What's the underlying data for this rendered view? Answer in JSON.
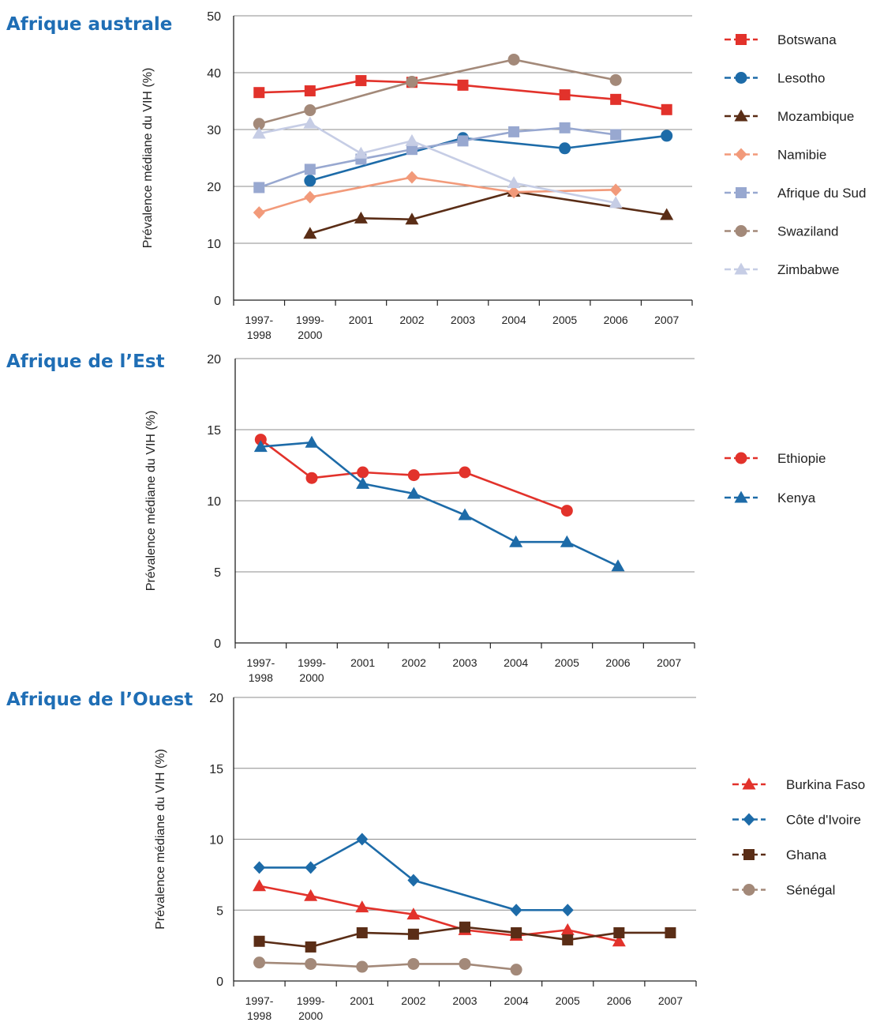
{
  "chart_data": [
    {
      "type": "line",
      "title": "Afrique australe",
      "ylabel": "Prévalence médiane du VIH (%)",
      "ylim": [
        0,
        50
      ],
      "yticks": [
        0,
        10,
        20,
        30,
        40,
        50
      ],
      "categories": [
        "1997-\n1998",
        "1999-\n2000",
        "2001",
        "2002",
        "2003",
        "2004",
        "2005",
        "2006",
        "2007"
      ],
      "grid": true,
      "legend_position": "right",
      "series": [
        {
          "name": "Botswana",
          "color": "#e2322b",
          "marker": "square",
          "values": [
            36.5,
            36.8,
            38.6,
            38.3,
            37.8,
            null,
            36.1,
            35.3,
            33.5
          ]
        },
        {
          "name": "Lesotho",
          "color": "#1d6ba8",
          "marker": "circle",
          "values": [
            null,
            21.0,
            null,
            null,
            28.5,
            null,
            26.7,
            null,
            28.9
          ]
        },
        {
          "name": "Mozambique",
          "color": "#5a2d16",
          "marker": "triangle",
          "values": [
            null,
            11.7,
            14.4,
            14.2,
            null,
            19.1,
            null,
            null,
            15.0
          ]
        },
        {
          "name": "Namibie",
          "color": "#f29a7a",
          "marker": "diamond",
          "values": [
            15.4,
            18.1,
            null,
            21.6,
            null,
            19.0,
            null,
            19.4,
            null
          ]
        },
        {
          "name": "Afrique du Sud",
          "color": "#98a8d0",
          "marker": "square",
          "values": [
            19.8,
            23.0,
            24.8,
            26.5,
            28.0,
            29.6,
            30.3,
            29.1,
            null
          ]
        },
        {
          "name": "Swaziland",
          "color": "#a38979",
          "marker": "circle",
          "values": [
            31.0,
            33.4,
            null,
            38.4,
            null,
            42.3,
            null,
            38.7,
            null
          ]
        },
        {
          "name": "Zimbabwe",
          "color": "#c6cde5",
          "marker": "triangle",
          "values": [
            29.3,
            31.1,
            25.8,
            28.0,
            null,
            20.6,
            null,
            17.1,
            null
          ]
        }
      ]
    },
    {
      "type": "line",
      "title": "Afrique de l’Est",
      "ylabel": "Prévalence médiane du VIH (%)",
      "ylim": [
        0,
        20
      ],
      "yticks": [
        0,
        5,
        10,
        15,
        20
      ],
      "categories": [
        "1997-\n1998",
        "1999-\n2000",
        "2001",
        "2002",
        "2003",
        "2004",
        "2005",
        "2006",
        "2007"
      ],
      "grid": true,
      "legend_position": "right",
      "series": [
        {
          "name": "Ethiopie",
          "color": "#e2322b",
          "marker": "circle",
          "values": [
            14.3,
            11.6,
            12.0,
            11.8,
            12.0,
            null,
            9.3,
            null,
            null
          ]
        },
        {
          "name": "Kenya",
          "color": "#1d6ba8",
          "marker": "triangle",
          "values": [
            13.8,
            14.1,
            11.2,
            10.5,
            9.0,
            7.1,
            7.1,
            5.4,
            null
          ]
        }
      ]
    },
    {
      "type": "line",
      "title": "Afrique de l’Ouest",
      "ylabel": "Prévalence médiane du VIH (%)",
      "ylim": [
        0,
        20
      ],
      "yticks": [
        0,
        5,
        10,
        15,
        20
      ],
      "categories": [
        "1997-\n1998",
        "1999-\n2000",
        "2001",
        "2002",
        "2003",
        "2004",
        "2005",
        "2006",
        "2007"
      ],
      "grid": true,
      "legend_position": "right",
      "series": [
        {
          "name": "Burkina Faso",
          "color": "#e2322b",
          "marker": "triangle",
          "values": [
            6.7,
            6.0,
            5.2,
            4.7,
            3.6,
            3.2,
            3.6,
            2.8,
            null
          ]
        },
        {
          "name": "Côte d'Ivoire",
          "color": "#1d6ba8",
          "marker": "diamond",
          "values": [
            8.0,
            8.0,
            10.0,
            7.1,
            null,
            5.0,
            5.0,
            null,
            null
          ]
        },
        {
          "name": "Ghana",
          "color": "#5a2d16",
          "marker": "square",
          "values": [
            2.8,
            2.4,
            3.4,
            3.3,
            3.8,
            3.4,
            2.9,
            3.4,
            3.4
          ]
        },
        {
          "name": "Sénégal",
          "color": "#a38979",
          "marker": "circle",
          "values": [
            1.3,
            1.2,
            1.0,
            1.2,
            1.2,
            0.8,
            null,
            null,
            null
          ]
        }
      ]
    }
  ]
}
